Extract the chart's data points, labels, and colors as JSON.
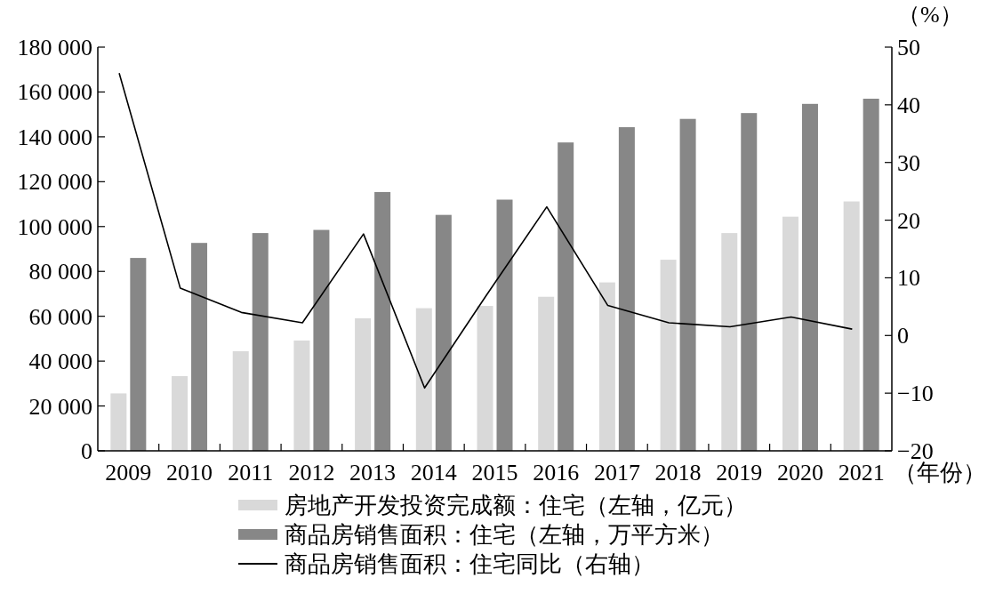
{
  "chart_data": {
    "type": "bar",
    "xlabel": "（年份）",
    "y2label": "（%）",
    "categories": [
      "2009",
      "2010",
      "2011",
      "2012",
      "2013",
      "2014",
      "2015",
      "2016",
      "2017",
      "2018",
      "2019",
      "2020",
      "2021"
    ],
    "series": [
      {
        "name": "房地产开发投资完成额：住宅（左轴，亿元）",
        "color": "#d9d9d9",
        "values": [
          25600,
          33300,
          44400,
          49200,
          59100,
          63600,
          64600,
          68700,
          75100,
          85200,
          97100,
          104400,
          111200
        ]
      },
      {
        "name": "商品房销售面积：住宅（左轴，万平方米）",
        "color": "#878787",
        "values": [
          86000,
          92700,
          97100,
          98500,
          115400,
          105200,
          112000,
          137500,
          144300,
          148000,
          150600,
          154700,
          157000
        ]
      },
      {
        "name": "商品房销售面积：住宅同比（右轴）",
        "type": "line",
        "axis": "y2",
        "color": "#000000",
        "values": [
          45.5,
          8.2,
          4.0,
          2.2,
          17.6,
          -9.1,
          6.8,
          22.3,
          5.2,
          2.2,
          1.5,
          3.2,
          1.1
        ]
      }
    ],
    "ylim": [
      0,
      180000
    ],
    "yticks": [
      {
        "value": 0,
        "label": "0"
      },
      {
        "value": 20000,
        "label": "20 000"
      },
      {
        "value": 40000,
        "label": "40 000"
      },
      {
        "value": 60000,
        "label": "60 000"
      },
      {
        "value": 80000,
        "label": "80 000"
      },
      {
        "value": 100000,
        "label": "100 000"
      },
      {
        "value": 120000,
        "label": "120 000"
      },
      {
        "value": 140000,
        "label": "140 000"
      },
      {
        "value": 160000,
        "label": "160 000"
      },
      {
        "value": 180000,
        "label": "180 000"
      }
    ],
    "y2lim": [
      -20,
      50
    ],
    "y2ticks": [
      {
        "value": -20,
        "label": "−20"
      },
      {
        "value": -10,
        "label": "−10"
      },
      0,
      10,
      20,
      30,
      40,
      50
    ],
    "legend": "bottom",
    "grid": false
  }
}
